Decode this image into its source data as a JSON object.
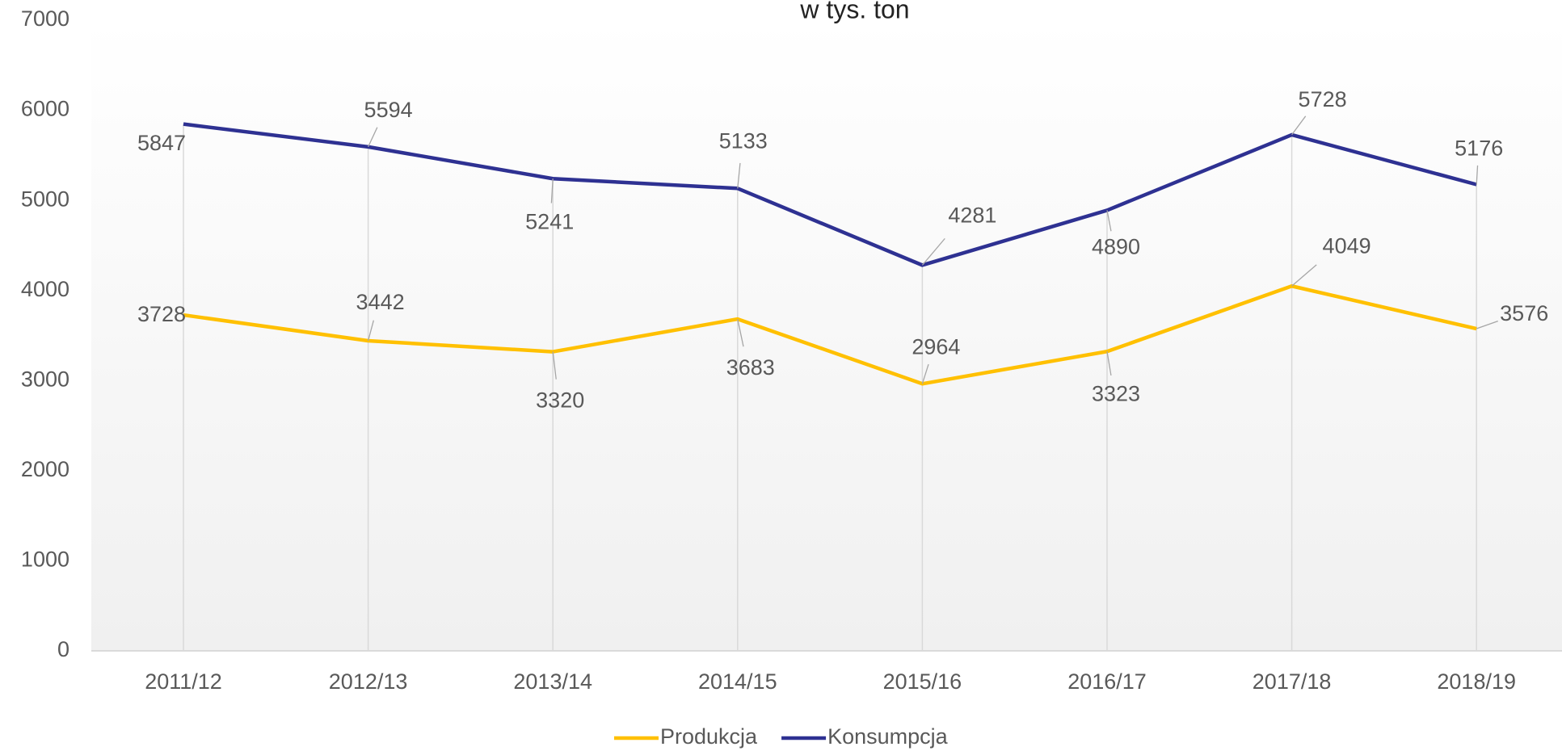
{
  "chart_data": {
    "type": "line",
    "title": "w tys. ton",
    "categories": [
      "2011/12",
      "2012/13",
      "2013/14",
      "2014/15",
      "2015/16",
      "2016/17",
      "2017/18",
      "2018/19"
    ],
    "series": [
      {
        "name": "Produkcja",
        "color": "#ffc000",
        "values": [
          3728,
          3442,
          3320,
          3683,
          2964,
          3323,
          4049,
          3576
        ]
      },
      {
        "name": "Konsumpcja",
        "color": "#2e3192",
        "values": [
          5847,
          5594,
          5241,
          5133,
          4281,
          4890,
          5728,
          5176
        ]
      }
    ],
    "ylim": [
      0,
      7000
    ],
    "yticks": [
      0,
      1000,
      2000,
      3000,
      4000,
      5000,
      6000,
      7000
    ],
    "legend": "bottom"
  }
}
